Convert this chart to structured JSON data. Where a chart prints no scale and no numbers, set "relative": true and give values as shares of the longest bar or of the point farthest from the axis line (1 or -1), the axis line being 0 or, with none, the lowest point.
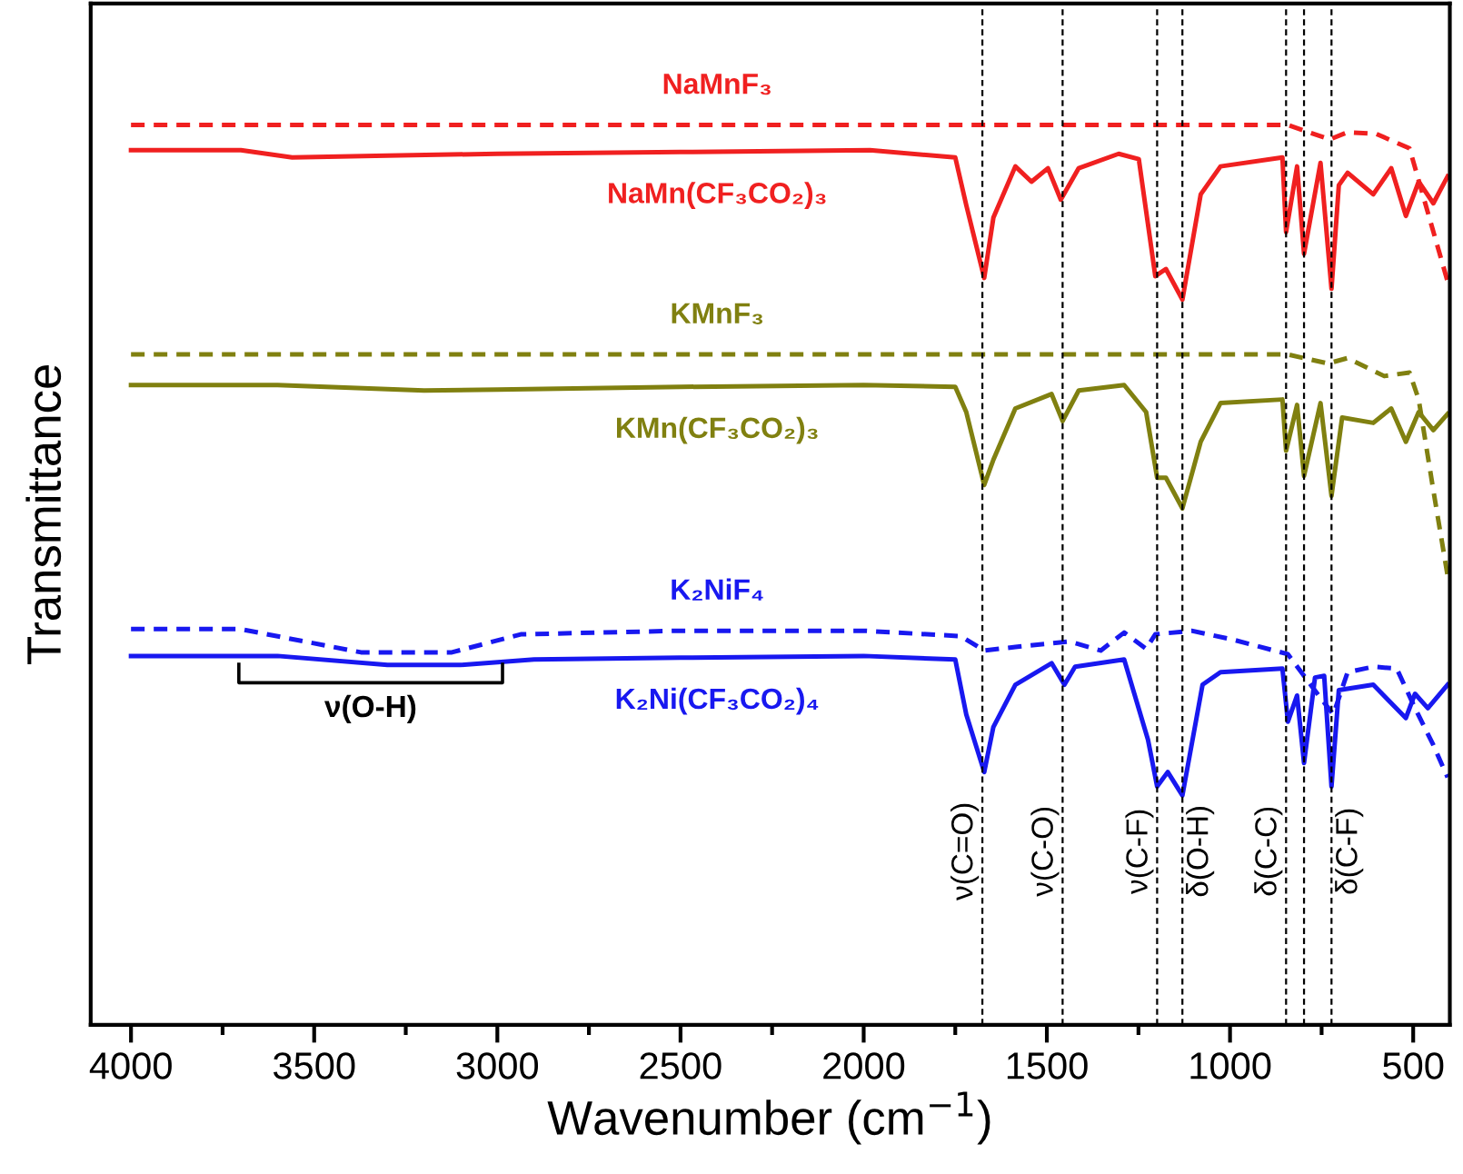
{
  "chart_data": {
    "type": "line",
    "relative": true,
    "xlabel": "Wavenumber (cm$^{−1}$)",
    "ylabel": "Transmittance",
    "xlim": [
      4110,
      400
    ],
    "xticks": [
      4000,
      {
        "value": 3750,
        "label": null
      },
      3500,
      {
        "value": 3250,
        "label": null
      },
      3000,
      {
        "value": 2750,
        "label": null
      },
      2500,
      {
        "value": 2250,
        "label": null
      },
      2000,
      {
        "value": 1750,
        "label": null
      },
      1500,
      {
        "value": 1250,
        "label": null
      },
      1000,
      {
        "value": 750,
        "label": null
      },
      500
    ],
    "grid": false,
    "legend": false,
    "tick_labels": "x",
    "series": [
      {
        "name": "NaMnF₃",
        "color": "#f02020",
        "line_style": "dashed",
        "x": [
          4000,
          3000,
          2000,
          1500,
          1000,
          842,
          728,
          679,
          600,
          510,
          406
        ],
        "values": [
          1.0,
          1.0,
          1.0,
          1.0,
          1.0,
          1.0,
          0.984,
          0.992,
          0.99,
          0.974,
          0.826
        ]
      },
      {
        "name": "NaMn(CF₃CO₂)₃",
        "color": "#f02020",
        "line_style": "solid",
        "x": [
          4000,
          3700,
          3560,
          3300,
          3000,
          2500,
          1983,
          1750,
          1720,
          1671,
          1646,
          1586,
          1542,
          1497,
          1462,
          1413,
          1304,
          1249,
          1204,
          1175,
          1130,
          1080,
          1026,
          857,
          847,
          817,
          798,
          753,
          723,
          703,
          679,
          609,
          560,
          520,
          485,
          445,
          406
        ],
        "values": [
          0.972,
          0.972,
          0.964,
          0.966,
          0.968,
          0.97,
          0.972,
          0.964,
          0.911,
          0.83,
          0.897,
          0.954,
          0.937,
          0.952,
          0.917,
          0.952,
          0.968,
          0.962,
          0.832,
          0.84,
          0.806,
          0.923,
          0.954,
          0.964,
          0.881,
          0.954,
          0.857,
          0.958,
          0.818,
          0.933,
          0.947,
          0.923,
          0.952,
          0.899,
          0.937,
          0.913,
          0.943
        ]
      },
      {
        "name": "KMnF₃",
        "color": "#808010",
        "line_style": "dashed",
        "x": [
          4000,
          3000,
          2000,
          1500,
          1000,
          842,
          733,
          679,
          579,
          510,
          485,
          445,
          406
        ],
        "values": [
          0.745,
          0.745,
          0.745,
          0.745,
          0.745,
          0.745,
          0.735,
          0.741,
          0.721,
          0.725,
          0.695,
          0.594,
          0.499
        ]
      },
      {
        "name": "KMn(CF₃CO₂)₃",
        "color": "#808010",
        "line_style": "solid",
        "x": [
          4000,
          3600,
          3200,
          3000,
          2500,
          2000,
          1750,
          1720,
          1671,
          1646,
          1586,
          1487,
          1457,
          1413,
          1289,
          1229,
          1199,
          1175,
          1130,
          1080,
          1026,
          857,
          847,
          817,
          798,
          753,
          723,
          694,
          609,
          560,
          520,
          485,
          445,
          406
        ],
        "values": [
          0.711,
          0.711,
          0.705,
          0.706,
          0.709,
          0.711,
          0.709,
          0.681,
          0.6,
          0.628,
          0.685,
          0.701,
          0.671,
          0.705,
          0.711,
          0.681,
          0.608,
          0.608,
          0.574,
          0.648,
          0.691,
          0.695,
          0.638,
          0.689,
          0.61,
          0.691,
          0.588,
          0.675,
          0.669,
          0.685,
          0.648,
          0.681,
          0.661,
          0.679
        ]
      },
      {
        "name": "K₂NiF₄",
        "color": "#1818f0",
        "line_style": "dashed",
        "x": [
          4000,
          3704,
          3372,
          3124,
          2936,
          2500,
          2000,
          1735,
          1671,
          1586,
          1438,
          1353,
          1289,
          1229,
          1204,
          1105,
          991,
          842,
          758,
          718,
          679,
          609,
          545,
          495,
          445,
          406
        ],
        "values": [
          0.44,
          0.44,
          0.414,
          0.414,
          0.434,
          0.438,
          0.438,
          0.432,
          0.416,
          0.42,
          0.426,
          0.416,
          0.436,
          0.418,
          0.434,
          0.438,
          0.428,
          0.412,
          0.366,
          0.345,
          0.392,
          0.398,
          0.396,
          0.352,
          0.311,
          0.275
        ]
      },
      {
        "name": "K₂Ni(CF₃CO₂)₄",
        "color": "#1818f0",
        "line_style": "solid",
        "x": [
          4000,
          3600,
          3300,
          3100,
          2900,
          2500,
          2000,
          1750,
          1720,
          1671,
          1646,
          1586,
          1487,
          1452,
          1423,
          1289,
          1224,
          1199,
          1170,
          1130,
          1075,
          1026,
          857,
          842,
          817,
          798,
          768,
          743,
          723,
          703,
          609,
          520,
          495,
          460,
          406
        ],
        "values": [
          0.41,
          0.41,
          0.4,
          0.4,
          0.406,
          0.408,
          0.41,
          0.406,
          0.345,
          0.281,
          0.331,
          0.378,
          0.402,
          0.378,
          0.398,
          0.406,
          0.317,
          0.265,
          0.281,
          0.255,
          0.378,
          0.392,
          0.396,
          0.337,
          0.366,
          0.291,
          0.386,
          0.388,
          0.265,
          0.372,
          0.378,
          0.341,
          0.368,
          0.352,
          0.378
        ]
      }
    ],
    "ref_lines": [
      {
        "axis": "x",
        "value": 1676,
        "label": "ν(C=O)",
        "color": "#000000",
        "line_style": "dashed"
      },
      {
        "axis": "x",
        "value": 1457,
        "label": "ν(C-O)",
        "color": "#000000",
        "line_style": "dashed"
      },
      {
        "axis": "x",
        "value": 1199,
        "label": "ν(C-F)",
        "color": "#000000",
        "line_style": "dashed"
      },
      {
        "axis": "x",
        "value": 1130,
        "label": "δ(O-H)",
        "color": "#000000",
        "line_style": "dashed"
      },
      {
        "axis": "x",
        "value": 847,
        "label": "δ(C-C)",
        "color": "#000000",
        "line_style": "dashed"
      },
      {
        "axis": "x",
        "value": 798,
        "label": null,
        "color": "#000000",
        "line_style": "dashed"
      },
      {
        "axis": "x",
        "value": 723,
        "label": "δ(C-F)",
        "color": "#000000",
        "line_style": "dashed"
      }
    ],
    "annotations": [
      "ν(O-H)"
    ]
  }
}
